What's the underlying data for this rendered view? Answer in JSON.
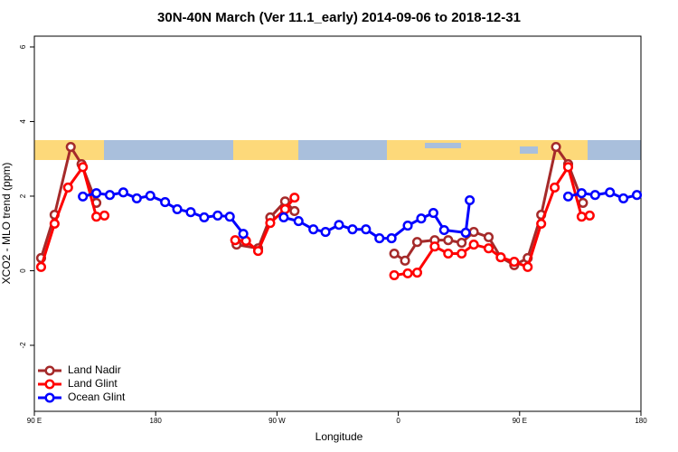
{
  "chart_data": {
    "type": "line",
    "title": "30N-40N March (Ver 11.1_early)   2014-09-06 to 2018-12-31",
    "x_label": "Longitude",
    "y_label": "XCO2 - MLO trend (ppm)",
    "xlim": [
      90,
      540
    ],
    "xticks": [
      {
        "value": 90,
        "label": "90 E"
      },
      180,
      {
        "value": 270,
        "label": "90 W"
      },
      {
        "value": 360,
        "label": "0"
      },
      {
        "value": 450,
        "label": "90 E"
      },
      {
        "value": 540,
        "label": "180"
      }
    ],
    "ylim": [
      -3.77,
      6.29
    ],
    "yticks": [
      -2,
      0,
      2,
      4,
      6
    ],
    "legend": "bottom-left",
    "series": [
      {
        "name": "Land Nadir",
        "color": "#a52a2a",
        "x": [
          95,
          105,
          117,
          125,
          136,
          190,
          240,
          256,
          265,
          276,
          283,
          320,
          357,
          365,
          374,
          387,
          397,
          407,
          416,
          427,
          436,
          446,
          456,
          466,
          477,
          486,
          497
        ],
        "values": [
          0.34,
          1.5,
          3.32,
          2.86,
          1.82,
          null,
          0.7,
          0.6,
          1.43,
          1.86,
          1.6,
          null,
          0.46,
          0.27,
          0.77,
          0.82,
          0.82,
          0.75,
          1.04,
          0.9,
          0.36,
          0.15,
          0.34,
          1.5,
          3.32,
          2.86,
          1.82
        ]
      },
      {
        "name": "Land Glint",
        "color": "#ff0000",
        "x": [
          95,
          105,
          115,
          126,
          136,
          142,
          190,
          239,
          247,
          256,
          265,
          276,
          283,
          320,
          357,
          367,
          374,
          387,
          397,
          407,
          416,
          427,
          436,
          446,
          456,
          466,
          476,
          486,
          496,
          502
        ],
        "values": [
          0.1,
          1.26,
          2.23,
          2.78,
          1.45,
          1.48,
          null,
          0.82,
          0.8,
          0.53,
          1.28,
          1.65,
          1.96,
          null,
          -0.12,
          -0.07,
          -0.05,
          0.65,
          0.46,
          0.46,
          0.7,
          0.6,
          0.36,
          0.24,
          0.1,
          1.26,
          2.23,
          2.78,
          1.45,
          1.48
        ]
      },
      {
        "name": "Ocean Glint",
        "color": "#0000ff",
        "x": [
          126,
          136,
          146,
          156,
          166,
          176,
          187,
          196,
          206,
          216,
          226,
          235,
          245,
          260,
          275,
          286,
          297,
          306,
          316,
          326,
          336,
          346,
          355,
          367,
          377,
          386,
          394,
          410,
          413,
          450,
          486,
          496,
          506,
          517,
          527,
          537
        ],
        "values": [
          1.99,
          2.08,
          2.03,
          2.1,
          1.94,
          2.01,
          1.84,
          1.65,
          1.57,
          1.43,
          1.48,
          1.45,
          0.99,
          null,
          1.43,
          1.33,
          1.11,
          1.04,
          1.23,
          1.11,
          1.11,
          0.87,
          0.87,
          1.21,
          1.4,
          1.55,
          1.09,
          1.02,
          1.89,
          null,
          1.99,
          2.08,
          2.03,
          2.1,
          1.94,
          2.03
        ]
      }
    ]
  }
}
